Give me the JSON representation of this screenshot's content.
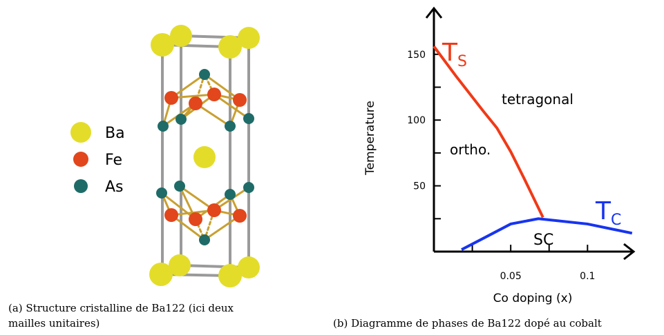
{
  "panel_a": {
    "legend": [
      {
        "label": "Ba",
        "color": "#e3dd2a"
      },
      {
        "label": "Fe",
        "color": "#e2461c"
      },
      {
        "label": "As",
        "color": "#1f6b68"
      }
    ],
    "caption": [
      "(a) Structure cristalline de Ba122 (ici deux",
      "mailles unitaires)"
    ]
  },
  "chart_data": {
    "type": "line",
    "x_label": "Co doping (x)",
    "y_label": "Temperature",
    "xlim": [
      0,
      0.13
    ],
    "ylim": [
      0,
      185
    ],
    "xticks": [
      0.05,
      0.1
    ],
    "yticks": [
      50,
      100,
      150
    ],
    "minor_xticks": [
      0.025,
      0.075
    ],
    "minor_yticks": [
      25,
      75,
      125
    ],
    "series": [
      {
        "label": {
          "main": "T",
          "sub": "S"
        },
        "color": "#f03a17",
        "x": [
          0,
          0.014,
          0.032,
          0.041,
          0.05,
          0.059,
          0.071
        ],
        "values": [
          156,
          134,
          107,
          94,
          76,
          55,
          26
        ]
      },
      {
        "label": {
          "main": "T",
          "sub": "C"
        },
        "color": "#1734f0",
        "x": [
          0.018,
          0.032,
          0.05,
          0.068,
          0.1,
          0.129
        ],
        "values": [
          1.5,
          10,
          21,
          25,
          21,
          14
        ]
      }
    ],
    "annotations": [
      "tetragonal",
      "ortho.",
      "SC"
    ]
  },
  "caption_b": "(b) Diagramme de phases de Ba122 dopé au cobalt"
}
